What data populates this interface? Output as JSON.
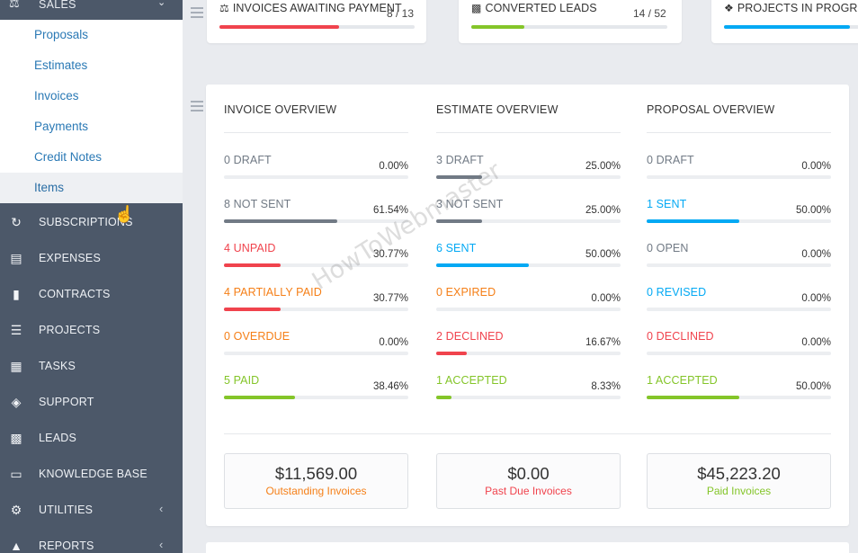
{
  "colors": {
    "sidebar_bg": "#4c5869",
    "link": "#2a79b5",
    "red": "#f0434d",
    "orange": "#f57f17",
    "green": "#84c529",
    "blue": "#03a9f4",
    "gray": "#717a85"
  },
  "sidebar": {
    "sales_label": "SALES",
    "sales_icon": "balance-scale-icon",
    "sub_items": [
      "Proposals",
      "Estimates",
      "Invoices",
      "Payments",
      "Credit Notes",
      "Items"
    ],
    "active_sub_item": "Items",
    "menu": [
      {
        "label": "SUBSCRIPTIONS",
        "icon": "subscriptions-icon"
      },
      {
        "label": "EXPENSES",
        "icon": "expenses-icon"
      },
      {
        "label": "CONTRACTS",
        "icon": "contracts-icon"
      },
      {
        "label": "PROJECTS",
        "icon": "projects-icon"
      },
      {
        "label": "TASKS",
        "icon": "tasks-icon"
      },
      {
        "label": "SUPPORT",
        "icon": "support-icon"
      },
      {
        "label": "LEADS",
        "icon": "leads-icon"
      },
      {
        "label": "KNOWLEDGE BASE",
        "icon": "knowledge-base-icon"
      },
      {
        "label": "UTILITIES",
        "icon": "utilities-icon",
        "arrow": "‹"
      },
      {
        "label": "REPORTS",
        "icon": "reports-icon",
        "arrow": "‹"
      }
    ]
  },
  "stats": [
    {
      "title": "INVOICES AWAITING PAYMENT",
      "count": "8 / 13",
      "progress": 0.615,
      "icon": "balance-scale-icon",
      "color": "#f0434d"
    },
    {
      "title": "CONVERTED LEADS",
      "count": "14 / 52",
      "progress": 0.27,
      "icon": "leads-icon",
      "color": "#84c529"
    },
    {
      "title": "PROJECTS IN PROGRE",
      "count": "",
      "progress": 0.93,
      "icon": "cubes-icon",
      "color": "#03a9f4"
    }
  ],
  "overview": [
    {
      "heading": "INVOICE OVERVIEW",
      "rows": [
        {
          "label": "0 DRAFT",
          "pct": "0.00%",
          "value": 0,
          "color": "#717a85"
        },
        {
          "label": "8 NOT SENT",
          "pct": "61.54%",
          "value": 61.54,
          "color": "#717a85"
        },
        {
          "label": "4 UNPAID",
          "pct": "30.77%",
          "value": 30.77,
          "color": "#f0434d"
        },
        {
          "label": "4 PARTIALLY PAID",
          "pct": "30.77%",
          "value": 30.77,
          "color": "#f57f17",
          "bar_color": "#f0434d"
        },
        {
          "label": "0 OVERDUE",
          "pct": "0.00%",
          "value": 0,
          "color": "#f57f17"
        },
        {
          "label": "5 PAID",
          "pct": "38.46%",
          "value": 38.46,
          "color": "#84c529"
        }
      ],
      "total_amount": "$11,569.00",
      "total_caption": "Outstanding Invoices",
      "caption_color": "#f57f17"
    },
    {
      "heading": "ESTIMATE OVERVIEW",
      "rows": [
        {
          "label": "3 DRAFT",
          "pct": "25.00%",
          "value": 25,
          "color": "#717a85"
        },
        {
          "label": "3 NOT SENT",
          "pct": "25.00%",
          "value": 25,
          "color": "#717a85"
        },
        {
          "label": "6 SENT",
          "pct": "50.00%",
          "value": 50,
          "color": "#03a9f4"
        },
        {
          "label": "0 EXPIRED",
          "pct": "0.00%",
          "value": 0,
          "color": "#f57f17"
        },
        {
          "label": "2 DECLINED",
          "pct": "16.67%",
          "value": 16.67,
          "color": "#f0434d"
        },
        {
          "label": "1 ACCEPTED",
          "pct": "8.33%",
          "value": 8.33,
          "color": "#84c529"
        }
      ],
      "total_amount": "$0.00",
      "total_caption": "Past Due Invoices",
      "caption_color": "#f0434d"
    },
    {
      "heading": "PROPOSAL OVERVIEW",
      "rows": [
        {
          "label": "0 DRAFT",
          "pct": "0.00%",
          "value": 0,
          "color": "#717a85"
        },
        {
          "label": "1 SENT",
          "pct": "50.00%",
          "value": 50,
          "color": "#03a9f4"
        },
        {
          "label": "0 OPEN",
          "pct": "0.00%",
          "value": 0,
          "color": "#717a85"
        },
        {
          "label": "0 REVISED",
          "pct": "0.00%",
          "value": 0,
          "color": "#03a9f4"
        },
        {
          "label": "0 DECLINED",
          "pct": "0.00%",
          "value": 0,
          "color": "#f0434d"
        },
        {
          "label": "1 ACCEPTED",
          "pct": "50.00%",
          "value": 50,
          "color": "#84c529"
        }
      ],
      "total_amount": "$45,223.20",
      "total_caption": "Paid Invoices",
      "caption_color": "#84c529"
    }
  ],
  "watermark": "HowToWebmaster"
}
